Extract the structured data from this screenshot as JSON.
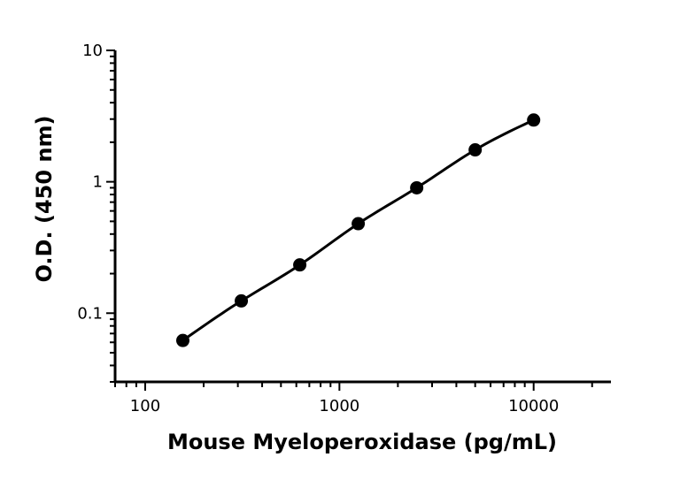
{
  "chart_data": {
    "type": "scatter",
    "xlabel": "Mouse Myeloperoxidase (pg/mL)",
    "ylabel": "O.D. (450 nm)",
    "xscale": "log",
    "yscale": "log",
    "xlim": [
      70,
      25000
    ],
    "ylim": [
      0.03,
      10
    ],
    "x_ticks": [
      "100",
      "1000",
      "10000"
    ],
    "y_ticks": [
      "0.1",
      "1",
      "10"
    ],
    "series": [
      {
        "x": [
          156.25,
          312.5,
          625,
          1250,
          2500,
          5000,
          10000
        ],
        "y": [
          0.062,
          0.124,
          0.233,
          0.48,
          0.9,
          1.75,
          2.95
        ],
        "fit_line": true
      }
    ],
    "colors": {
      "marker": "#000000",
      "line": "#000000",
      "axis": "#000000"
    }
  }
}
